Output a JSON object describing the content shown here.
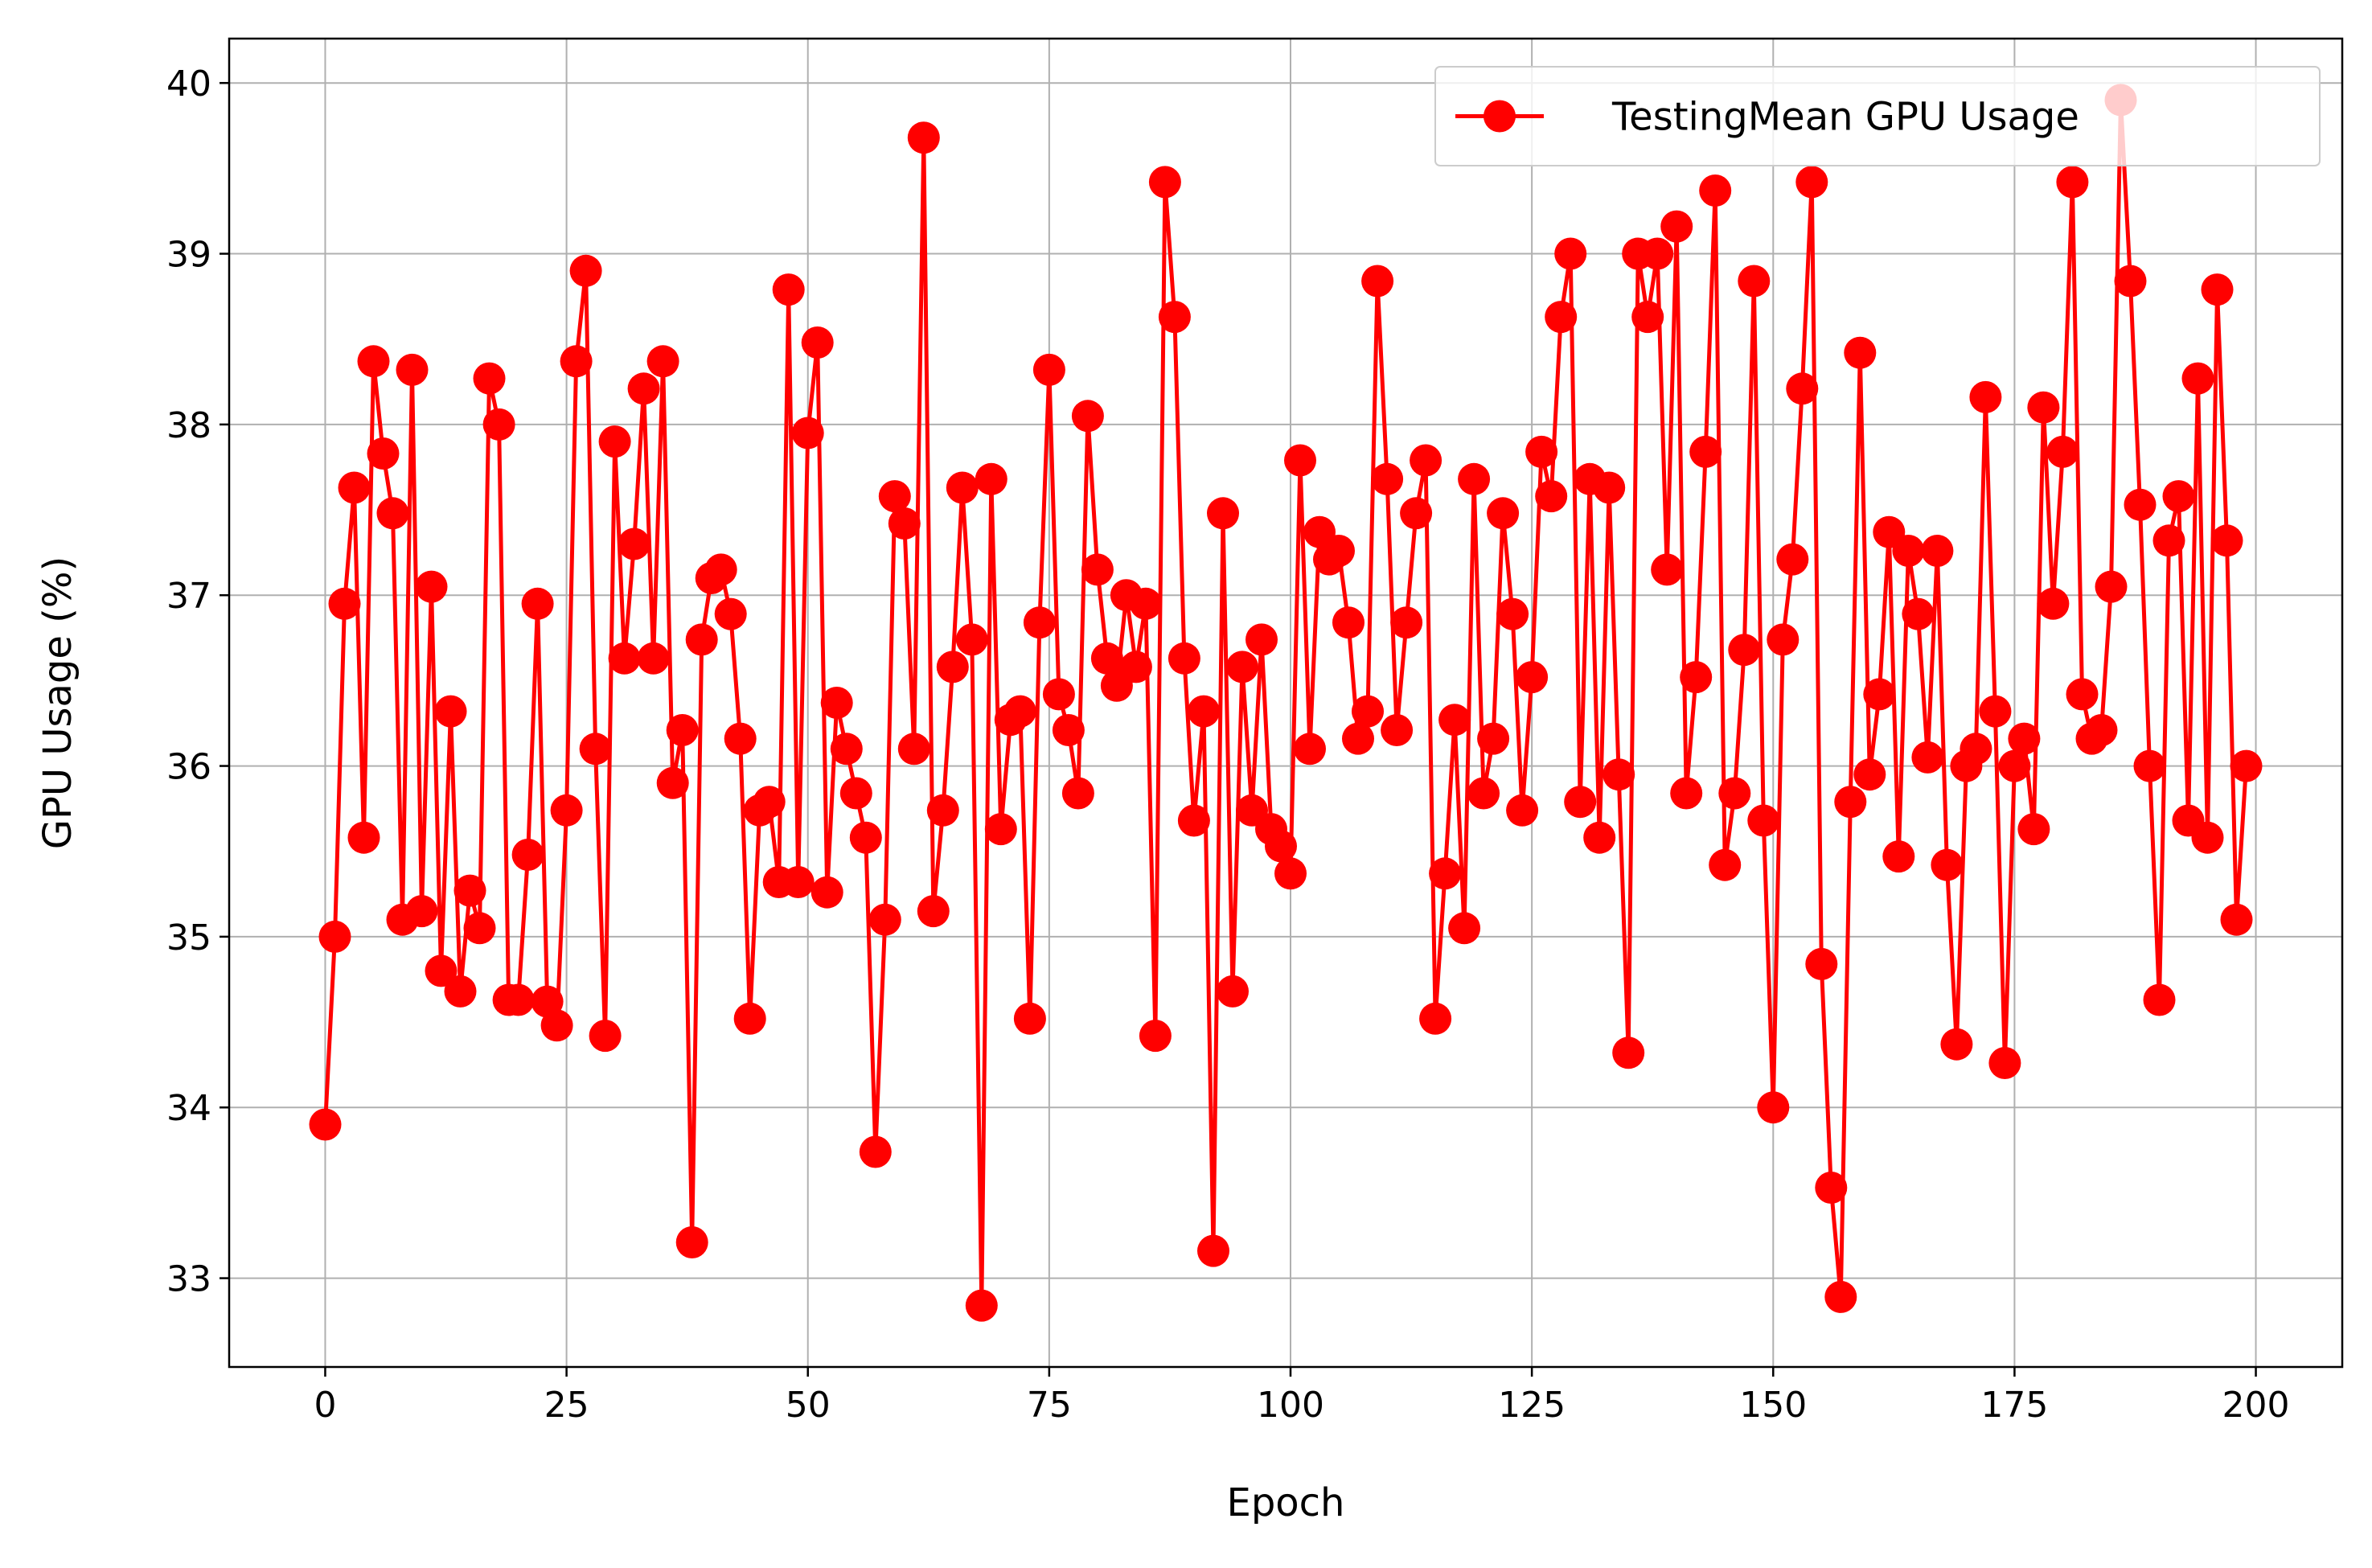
{
  "chart_data": {
    "type": "line",
    "title": "",
    "xlabel": "Epoch",
    "ylabel": "GPU Usage (%)",
    "xlim": [
      -9.95,
      208.95
    ],
    "ylim": [
      32.48,
      40.26
    ],
    "xticks": [
      0,
      25,
      50,
      75,
      100,
      125,
      150,
      175,
      200
    ],
    "yticks": [
      33,
      34,
      35,
      36,
      37,
      38,
      39,
      40
    ],
    "grid": true,
    "legend_position": "top-right",
    "colors": {
      "series": "#ff0000",
      "grid": "#b0b0b0",
      "axis": "#000000"
    },
    "series": [
      {
        "name": "TestingMean GPU Usage",
        "marker": "circle",
        "x_start": 0,
        "x_step": 1,
        "values": [
          33.9,
          35.0,
          36.95,
          37.63,
          35.58,
          38.37,
          37.83,
          37.48,
          35.1,
          38.32,
          35.15,
          37.05,
          34.8,
          36.32,
          34.68,
          35.27,
          35.05,
          38.27,
          38.0,
          34.63,
          34.63,
          35.48,
          36.95,
          34.62,
          34.48,
          35.74,
          38.37,
          38.9,
          36.1,
          34.42,
          37.9,
          36.63,
          37.3,
          38.21,
          36.63,
          38.37,
          35.9,
          36.21,
          33.21,
          36.74,
          37.1,
          37.15,
          36.89,
          36.16,
          34.52,
          35.74,
          35.79,
          35.32,
          38.79,
          35.32,
          37.95,
          38.48,
          35.26,
          36.37,
          36.1,
          35.84,
          35.58,
          33.74,
          35.1,
          37.58,
          37.42,
          36.1,
          39.68,
          35.15,
          35.74,
          36.58,
          37.63,
          36.74,
          32.84,
          37.68,
          35.63,
          36.27,
          36.32,
          34.52,
          36.84,
          38.32,
          36.42,
          36.21,
          35.84,
          38.05,
          37.15,
          36.63,
          36.47,
          37.0,
          36.58,
          36.95,
          34.42,
          39.42,
          38.63,
          36.63,
          35.68,
          36.32,
          33.16,
          37.48,
          34.68,
          36.58,
          35.74,
          36.74,
          35.63,
          35.53,
          35.37,
          37.79,
          36.1,
          37.37,
          37.21,
          37.26,
          36.84,
          36.16,
          36.32,
          38.84,
          37.68,
          36.21,
          36.84,
          37.48,
          37.79,
          34.52,
          35.37,
          36.27,
          35.05,
          37.68,
          35.84,
          36.16,
          37.48,
          36.89,
          35.74,
          36.52,
          37.84,
          37.58,
          38.63,
          39.0,
          35.79,
          37.68,
          35.58,
          37.63,
          35.95,
          34.32,
          39.0,
          38.63,
          39.0,
          37.15,
          39.16,
          35.84,
          36.52,
          37.84,
          39.37,
          35.42,
          35.84,
          36.68,
          38.84,
          35.68,
          34.0,
          36.74,
          37.21,
          38.21,
          39.42,
          34.84,
          33.53,
          32.89,
          35.79,
          38.42,
          35.95,
          36.42,
          37.37,
          35.47,
          37.26,
          36.89,
          36.05,
          37.26,
          35.42,
          34.37,
          36.0,
          36.1,
          38.16,
          36.32,
          34.26,
          36.0,
          36.16,
          35.63,
          38.1,
          36.95,
          37.84,
          39.42,
          36.42,
          36.16,
          36.21,
          37.05,
          39.9,
          38.84,
          37.53,
          36.0,
          34.63,
          37.32,
          37.58,
          35.68,
          38.27,
          35.58,
          38.79,
          37.32,
          35.1,
          36.0
        ]
      }
    ]
  }
}
